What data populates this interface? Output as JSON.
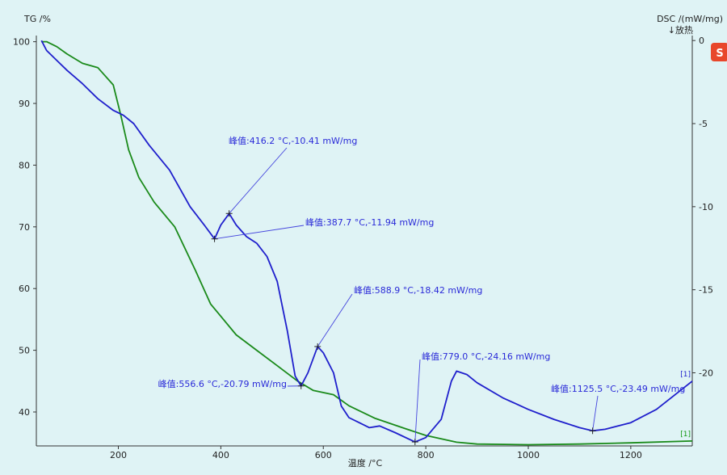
{
  "chart_data": {
    "type": "line",
    "xlabel": "温度 /°C",
    "ylabel_left": "TG /%",
    "ylabel_right": "DSC /(mW/mg)",
    "right_note": "↓放热",
    "xlim": [
      40,
      1320
    ],
    "ylim_left": [
      34.5,
      101
    ],
    "ylim_right": [
      -24.4,
      0.3
    ],
    "x_ticks": [
      200,
      400,
      600,
      800,
      1000,
      1200
    ],
    "y_left_ticks": [
      100,
      90,
      80,
      70,
      60,
      50,
      40
    ],
    "y_right_ticks": [
      0,
      -5,
      -10,
      -15,
      -20
    ],
    "grid": false,
    "series": [
      {
        "name": "TG",
        "axis": "left",
        "color": "#1a8a1a",
        "tag": "[1]",
        "x": [
          50,
          60,
          80,
          100,
          130,
          160,
          190,
          205,
          220,
          240,
          270,
          310,
          350,
          380,
          400,
          430,
          470,
          510,
          550,
          580,
          620,
          650,
          700,
          760,
          800,
          860,
          900,
          1000,
          1100,
          1200,
          1320
        ],
        "y": [
          100,
          100,
          99.2,
          98,
          96.5,
          95.8,
          93,
          88,
          82.5,
          78,
          74,
          70,
          63,
          57.5,
          55.5,
          52.5,
          50,
          47.5,
          45,
          43.5,
          42.8,
          41,
          39,
          37.3,
          36.2,
          35.1,
          34.8,
          34.7,
          34.8,
          35,
          35.3
        ]
      },
      {
        "name": "DSC",
        "axis": "right",
        "color": "#1f1fcc",
        "tag": "[1]",
        "x": [
          50,
          60,
          80,
          100,
          130,
          160,
          190,
          210,
          230,
          260,
          300,
          340,
          370,
          387.7,
          400,
          416.2,
          430,
          450,
          470,
          490,
          510,
          530,
          545,
          556.6,
          570,
          588.9,
          600,
          620,
          635,
          650,
          670,
          690,
          710,
          740,
          779,
          800,
          830,
          850,
          860,
          880,
          900,
          950,
          1000,
          1050,
          1100,
          1125.5,
          1150,
          1200,
          1250,
          1320
        ],
        "y": [
          0,
          -0.6,
          -1.2,
          -1.8,
          -2.6,
          -3.5,
          -4.2,
          -4.5,
          -5,
          -6.3,
          -7.8,
          -10,
          -11.2,
          -11.94,
          -11.1,
          -10.41,
          -11.1,
          -11.8,
          -12.2,
          -13,
          -14.5,
          -17.5,
          -20.2,
          -20.79,
          -20,
          -18.42,
          -18.8,
          -20,
          -22,
          -22.7,
          -23,
          -23.3,
          -23.2,
          -23.6,
          -24.16,
          -23.9,
          -22.8,
          -20.5,
          -19.9,
          -20.1,
          -20.6,
          -21.5,
          -22.2,
          -22.8,
          -23.3,
          -23.49,
          -23.4,
          -23,
          -22.2,
          -20.5
        ]
      }
    ],
    "peaks": [
      {
        "label": "峰值:416.2 °C,-10.41 mW/mg",
        "x": 416.2,
        "y": -10.41
      },
      {
        "label": "峰值:387.7 °C,-11.94 mW/mg",
        "x": 387.7,
        "y": -11.94
      },
      {
        "label": "峰值:588.9 °C,-18.42 mW/mg",
        "x": 588.9,
        "y": -18.42
      },
      {
        "label": "峰值:556.6 °C,-20.79 mW/mg",
        "x": 556.6,
        "y": -20.79
      },
      {
        "label": "峰值:779.0 °C,-24.16 mW/mg",
        "x": 779.0,
        "y": -24.16
      },
      {
        "label": "峰值:1125.5 °C,-23.49 mW/mg",
        "x": 1125.5,
        "y": -23.49
      }
    ]
  },
  "badge": {
    "text": "S",
    "color": "#e8472b"
  }
}
